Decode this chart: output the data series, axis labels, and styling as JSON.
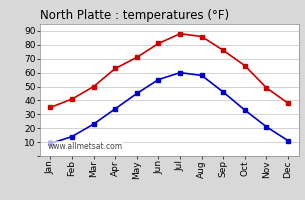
{
  "title": "North Platte : temperatures (°F)",
  "months": [
    "Jan",
    "Feb",
    "Mar",
    "Apr",
    "May",
    "Jun",
    "Jul",
    "Aug",
    "Sep",
    "Oct",
    "Nov",
    "Dec"
  ],
  "high_temps": [
    35,
    41,
    50,
    63,
    71,
    81,
    88,
    86,
    76,
    65,
    49,
    38
  ],
  "low_temps": [
    9,
    14,
    23,
    34,
    45,
    55,
    60,
    58,
    46,
    33,
    21,
    11
  ],
  "high_color": "#cc0000",
  "low_color": "#0000cc",
  "bg_color": "#d8d8d8",
  "plot_bg_color": "#ffffff",
  "ylim": [
    0,
    95
  ],
  "yticks": [
    0,
    10,
    20,
    30,
    40,
    50,
    60,
    70,
    80,
    90
  ],
  "watermark": "www.allmetsat.com",
  "title_fontsize": 8.5,
  "tick_fontsize": 6.5,
  "marker": "s",
  "markersize": 2.8,
  "linewidth": 1.2
}
